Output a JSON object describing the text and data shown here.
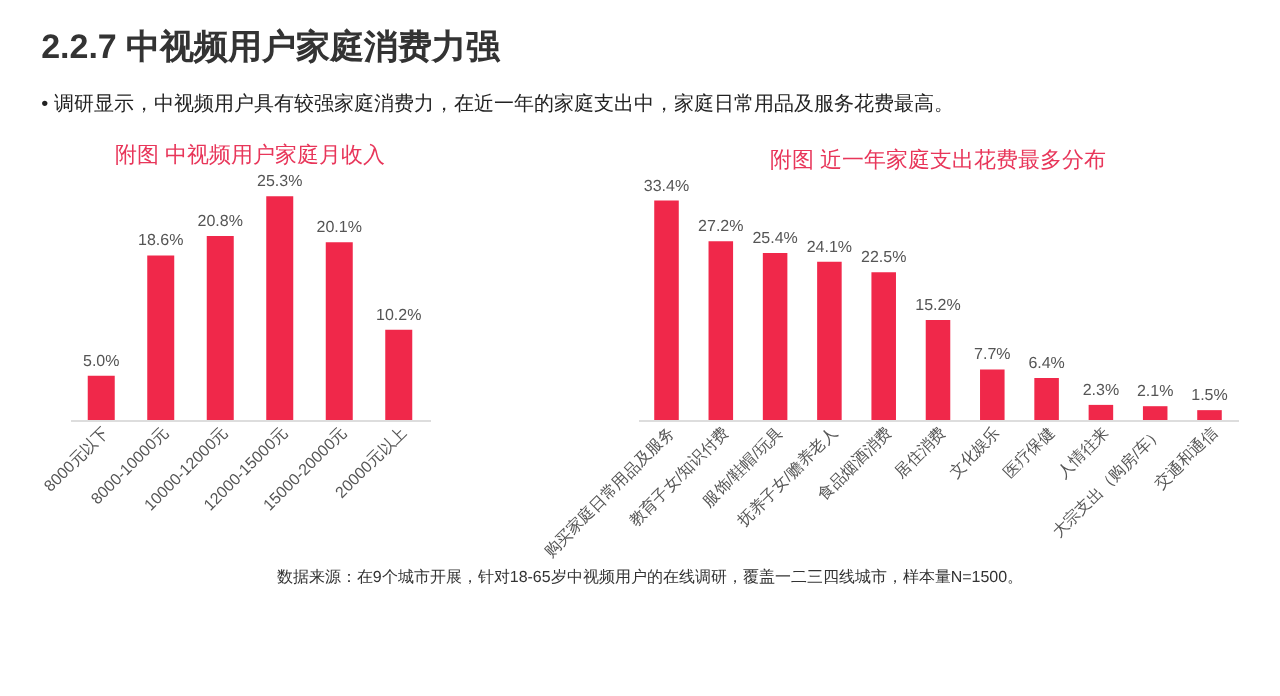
{
  "chart_data": [
    {
      "type": "bar",
      "title": "附图 中视频用户家庭月收入",
      "categories": [
        "8000元以下",
        "8000-10000元",
        "10000-12000元",
        "12000-15000元",
        "15000-20000元",
        "20000元以上"
      ],
      "values": [
        5.0,
        18.6,
        20.8,
        25.3,
        20.1,
        10.2
      ],
      "value_labels": [
        "5.0%",
        "18.6%",
        "20.8%",
        "25.3%",
        "20.1%",
        "10.2%"
      ],
      "color": "#f0284a",
      "grid": false,
      "tick_labels": "x",
      "annotations": [
        "2.2.7  中视频用户家庭消费力强",
        "• 调研显示，中视频用户具有较强家庭消费力，在近一年的家庭支出中，家庭日常用品及服务花费最高。",
        "数据来源：在9个城市开展，针对18-65岁中视频用户的在线调研，覆盖一二三四线城市，样本量N=1500。"
      ]
    },
    {
      "type": "bar",
      "title": "附图 近一年家庭支出花费最多分布",
      "categories": [
        "购买家庭日常用品及服务",
        "教育子女/知识付费",
        "服饰/鞋帽/玩具",
        "抚养子女/赡养老人",
        "食品烟酒消费",
        "居住消费",
        "文化娱乐",
        "医疗保健",
        "人情往来",
        "大宗支出（购房/车）",
        "交通和通信"
      ],
      "values": [
        33.4,
        27.2,
        25.4,
        24.1,
        22.5,
        15.2,
        7.7,
        6.4,
        2.3,
        2.1,
        1.5
      ],
      "value_labels": [
        "33.4%",
        "27.2%",
        "25.4%",
        "24.1%",
        "22.5%",
        "15.2%",
        "7.7%",
        "6.4%",
        "2.3%",
        "2.1%",
        "1.5%"
      ],
      "color": "#f0284a",
      "grid": false,
      "tick_labels": "x"
    }
  ]
}
